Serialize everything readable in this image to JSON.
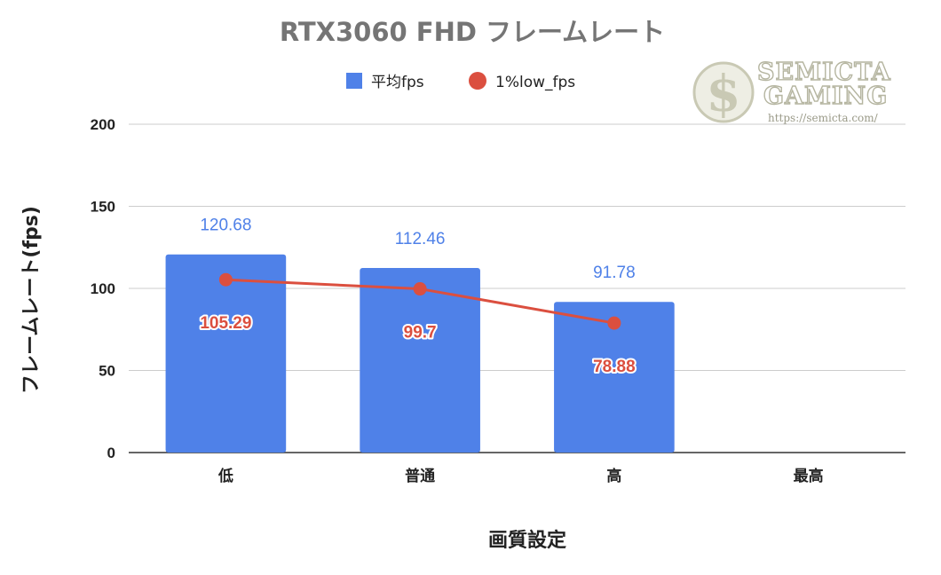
{
  "chart_data": {
    "type": "bar",
    "title": "RTX3060 FHD フレームレート",
    "xlabel": "画質設定",
    "ylabel": "フレームレート(fps)",
    "categories": [
      "低",
      "普通",
      "高",
      "最高"
    ],
    "ylim": [
      0,
      200
    ],
    "yticks": [
      0,
      50,
      100,
      150,
      200
    ],
    "grid": true,
    "legend_position": "top",
    "series": [
      {
        "name": "平均fps",
        "type": "bar",
        "color": "#4f81e8",
        "values": [
          120.68,
          112.46,
          91.78,
          null
        ],
        "labels": [
          "120.68",
          "112.46",
          "91.78",
          ""
        ]
      },
      {
        "name": "1%low_fps",
        "type": "line",
        "color": "#db4f3f",
        "values": [
          105.29,
          99.7,
          78.88,
          null
        ],
        "labels": [
          "105.29",
          "99.7",
          "78.88",
          ""
        ]
      }
    ]
  },
  "watermark": {
    "line1": "SEMICTA",
    "line2": "GAMING",
    "url": "https://semicta.com/",
    "coin_glyph": "$"
  }
}
